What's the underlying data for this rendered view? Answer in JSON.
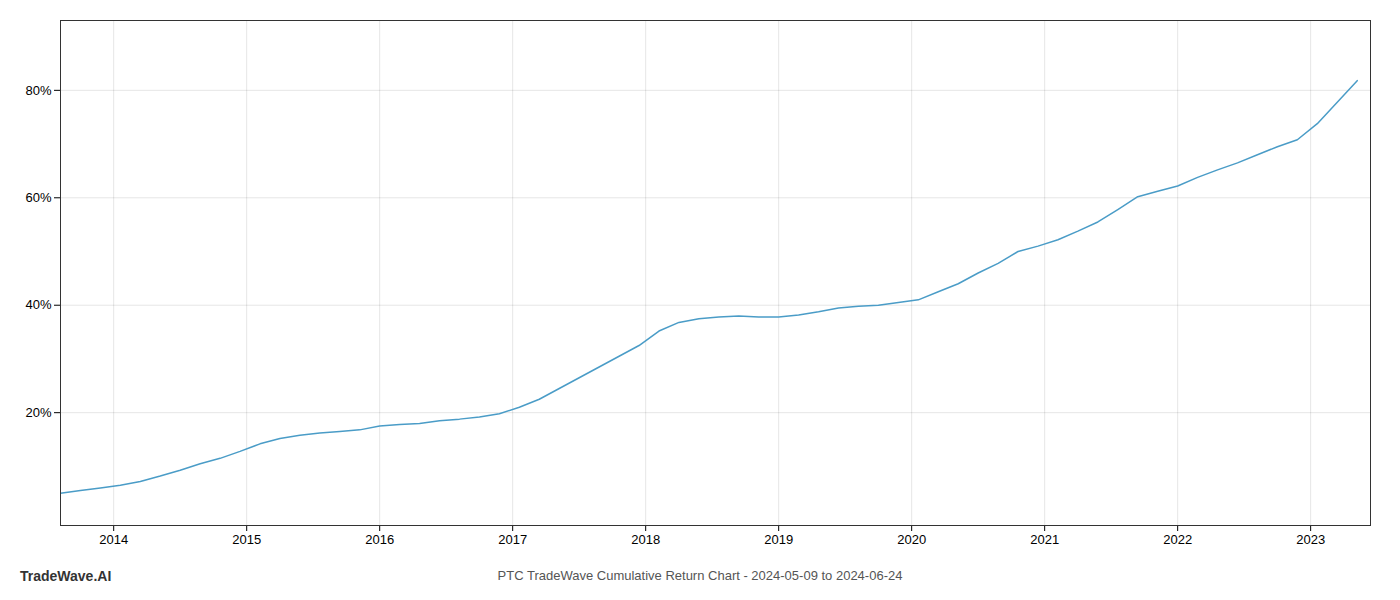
{
  "chart_data": {
    "type": "line",
    "title": "PTC TradeWave Cumulative Return Chart - 2024-05-09 to 2024-06-24",
    "annotations": [
      "TradeWave.AI"
    ],
    "x": [
      2013.6,
      2013.75,
      2013.9,
      2014.05,
      2014.2,
      2014.35,
      2014.5,
      2014.65,
      2014.8,
      2014.95,
      2015.1,
      2015.25,
      2015.4,
      2015.55,
      2015.7,
      2015.85,
      2016.0,
      2016.15,
      2016.3,
      2016.45,
      2016.6,
      2016.75,
      2016.9,
      2017.05,
      2017.2,
      2017.35,
      2017.5,
      2017.65,
      2017.8,
      2017.95,
      2018.1,
      2018.25,
      2018.4,
      2018.55,
      2018.7,
      2018.85,
      2019.0,
      2019.15,
      2019.3,
      2019.45,
      2019.6,
      2019.75,
      2019.9,
      2020.05,
      2020.2,
      2020.35,
      2020.5,
      2020.65,
      2020.8,
      2020.95,
      2021.1,
      2021.25,
      2021.4,
      2021.55,
      2021.7,
      2021.85,
      2022.0,
      2022.15,
      2022.3,
      2022.45,
      2022.6,
      2022.75,
      2022.9,
      2023.05,
      2023.2,
      2023.35
    ],
    "values": [
      0.05,
      0.055,
      0.06,
      0.065,
      0.072,
      0.082,
      0.093,
      0.105,
      0.115,
      0.128,
      0.142,
      0.152,
      0.158,
      0.162,
      0.165,
      0.168,
      0.175,
      0.178,
      0.18,
      0.185,
      0.188,
      0.192,
      0.198,
      0.21,
      0.225,
      0.245,
      0.265,
      0.285,
      0.305,
      0.325,
      0.352,
      0.368,
      0.375,
      0.378,
      0.38,
      0.378,
      0.378,
      0.382,
      0.388,
      0.395,
      0.398,
      0.4,
      0.405,
      0.41,
      0.425,
      0.44,
      0.46,
      0.478,
      0.5,
      0.51,
      0.522,
      0.538,
      0.555,
      0.578,
      0.602,
      0.612,
      0.622,
      0.638,
      0.652,
      0.665,
      0.68,
      0.695,
      0.708,
      0.738,
      0.778,
      0.818
    ],
    "color": "#4a9cc7",
    "xlim": [
      2013.6,
      2023.45
    ],
    "ylim": [
      -0.01,
      0.93
    ],
    "xticks": [
      2014,
      2015,
      2016,
      2017,
      2018,
      2019,
      2020,
      2021,
      2022,
      2023
    ],
    "yticks": [
      {
        "value": 0.2,
        "label": "20%"
      },
      {
        "value": 0.4,
        "label": "40%"
      },
      {
        "value": 0.6,
        "label": "60%"
      },
      {
        "value": 0.8,
        "label": "80%"
      }
    ],
    "grid": true
  }
}
